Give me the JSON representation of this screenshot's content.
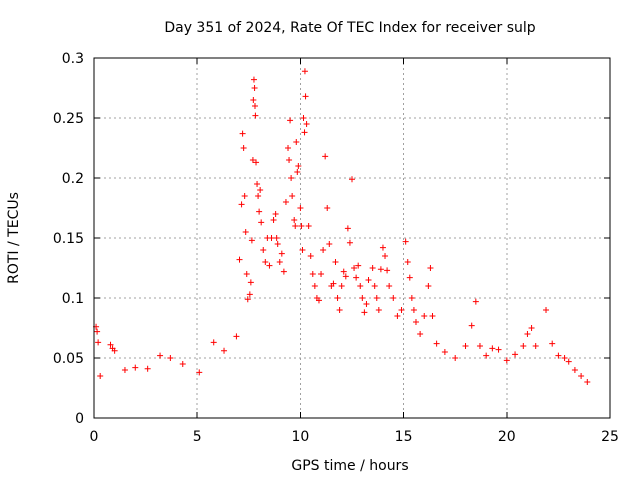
{
  "chart_data": {
    "type": "scatter",
    "title": "Day 351 of 2024, Rate Of TEC Index for receiver sulp",
    "xlabel": "GPS time / hours",
    "ylabel": "ROTI / TECUs",
    "xlim": [
      0,
      25
    ],
    "ylim": [
      0,
      0.3
    ],
    "x_ticks": [
      {
        "value": 0,
        "label": "0"
      },
      {
        "value": 5,
        "label": "5"
      },
      {
        "value": 10,
        "label": "10"
      },
      {
        "value": 15,
        "label": "15"
      },
      {
        "value": 20,
        "label": "20"
      },
      {
        "value": 25,
        "label": "25"
      }
    ],
    "y_ticks": [
      {
        "value": 0,
        "label": "0"
      },
      {
        "value": 0.05,
        "label": "0.05"
      },
      {
        "value": 0.1,
        "label": "0.1"
      },
      {
        "value": 0.15,
        "label": "0.15"
      },
      {
        "value": 0.2,
        "label": "0.2"
      },
      {
        "value": 0.25,
        "label": "0.25"
      },
      {
        "value": 0.3,
        "label": "0.3"
      }
    ],
    "grid": true,
    "marker": "plus",
    "color": "#ff0000",
    "series": [
      {
        "name": "ROTI",
        "points": [
          [
            0.1,
            0.076
          ],
          [
            0.15,
            0.072
          ],
          [
            0.2,
            0.063
          ],
          [
            0.3,
            0.035
          ],
          [
            0.8,
            0.061
          ],
          [
            0.9,
            0.058
          ],
          [
            1.0,
            0.056
          ],
          [
            1.5,
            0.04
          ],
          [
            2.0,
            0.042
          ],
          [
            2.6,
            0.041
          ],
          [
            3.2,
            0.052
          ],
          [
            3.7,
            0.05
          ],
          [
            4.3,
            0.045
          ],
          [
            5.1,
            0.038
          ],
          [
            5.8,
            0.063
          ],
          [
            6.3,
            0.056
          ],
          [
            6.9,
            0.068
          ],
          [
            7.05,
            0.132
          ],
          [
            7.15,
            0.178
          ],
          [
            7.2,
            0.237
          ],
          [
            7.25,
            0.225
          ],
          [
            7.3,
            0.185
          ],
          [
            7.35,
            0.155
          ],
          [
            7.4,
            0.12
          ],
          [
            7.45,
            0.099
          ],
          [
            7.55,
            0.103
          ],
          [
            7.6,
            0.113
          ],
          [
            7.65,
            0.148
          ],
          [
            7.7,
            0.215
          ],
          [
            7.72,
            0.265
          ],
          [
            7.75,
            0.282
          ],
          [
            7.78,
            0.275
          ],
          [
            7.8,
            0.26
          ],
          [
            7.82,
            0.252
          ],
          [
            7.85,
            0.213
          ],
          [
            7.9,
            0.195
          ],
          [
            7.95,
            0.185
          ],
          [
            8.0,
            0.172
          ],
          [
            8.05,
            0.19
          ],
          [
            8.1,
            0.163
          ],
          [
            8.2,
            0.14
          ],
          [
            8.3,
            0.13
          ],
          [
            8.4,
            0.15
          ],
          [
            8.5,
            0.127
          ],
          [
            8.6,
            0.15
          ],
          [
            8.7,
            0.165
          ],
          [
            8.8,
            0.17
          ],
          [
            8.85,
            0.15
          ],
          [
            8.9,
            0.145
          ],
          [
            9.0,
            0.13
          ],
          [
            9.1,
            0.137
          ],
          [
            9.2,
            0.122
          ],
          [
            9.3,
            0.18
          ],
          [
            9.4,
            0.225
          ],
          [
            9.45,
            0.215
          ],
          [
            9.5,
            0.248
          ],
          [
            9.55,
            0.2
          ],
          [
            9.6,
            0.185
          ],
          [
            9.7,
            0.165
          ],
          [
            9.75,
            0.16
          ],
          [
            9.8,
            0.23
          ],
          [
            9.85,
            0.205
          ],
          [
            9.9,
            0.21
          ],
          [
            10.0,
            0.175
          ],
          [
            10.05,
            0.16
          ],
          [
            10.1,
            0.14
          ],
          [
            10.15,
            0.25
          ],
          [
            10.2,
            0.238
          ],
          [
            10.22,
            0.289
          ],
          [
            10.25,
            0.268
          ],
          [
            10.3,
            0.245
          ],
          [
            10.4,
            0.16
          ],
          [
            10.5,
            0.135
          ],
          [
            10.6,
            0.12
          ],
          [
            10.7,
            0.11
          ],
          [
            10.8,
            0.1
          ],
          [
            10.9,
            0.098
          ],
          [
            11.0,
            0.12
          ],
          [
            11.1,
            0.14
          ],
          [
            11.2,
            0.218
          ],
          [
            11.3,
            0.175
          ],
          [
            11.4,
            0.145
          ],
          [
            11.5,
            0.11
          ],
          [
            11.6,
            0.112
          ],
          [
            11.7,
            0.13
          ],
          [
            11.8,
            0.1
          ],
          [
            11.9,
            0.09
          ],
          [
            12.0,
            0.11
          ],
          [
            12.1,
            0.122
          ],
          [
            12.2,
            0.118
          ],
          [
            12.3,
            0.158
          ],
          [
            12.4,
            0.146
          ],
          [
            12.5,
            0.199
          ],
          [
            12.6,
            0.125
          ],
          [
            12.7,
            0.117
          ],
          [
            12.8,
            0.127
          ],
          [
            12.9,
            0.11
          ],
          [
            13.0,
            0.1
          ],
          [
            13.1,
            0.088
          ],
          [
            13.2,
            0.095
          ],
          [
            13.3,
            0.115
          ],
          [
            13.5,
            0.125
          ],
          [
            13.6,
            0.11
          ],
          [
            13.7,
            0.1
          ],
          [
            13.8,
            0.09
          ],
          [
            13.9,
            0.124
          ],
          [
            14.0,
            0.142
          ],
          [
            14.1,
            0.135
          ],
          [
            14.2,
            0.123
          ],
          [
            14.3,
            0.11
          ],
          [
            14.5,
            0.1
          ],
          [
            14.7,
            0.085
          ],
          [
            14.9,
            0.09
          ],
          [
            15.1,
            0.147
          ],
          [
            15.2,
            0.13
          ],
          [
            15.3,
            0.117
          ],
          [
            15.4,
            0.1
          ],
          [
            15.5,
            0.09
          ],
          [
            15.6,
            0.08
          ],
          [
            15.8,
            0.07
          ],
          [
            16.0,
            0.085
          ],
          [
            16.2,
            0.11
          ],
          [
            16.3,
            0.125
          ],
          [
            16.4,
            0.085
          ],
          [
            16.6,
            0.062
          ],
          [
            17.0,
            0.055
          ],
          [
            17.5,
            0.05
          ],
          [
            18.0,
            0.06
          ],
          [
            18.3,
            0.077
          ],
          [
            18.5,
            0.097
          ],
          [
            18.7,
            0.06
          ],
          [
            19.0,
            0.052
          ],
          [
            19.3,
            0.058
          ],
          [
            19.6,
            0.057
          ],
          [
            20.0,
            0.048
          ],
          [
            20.4,
            0.053
          ],
          [
            20.8,
            0.06
          ],
          [
            21.0,
            0.07
          ],
          [
            21.2,
            0.075
          ],
          [
            21.4,
            0.06
          ],
          [
            21.9,
            0.09
          ],
          [
            22.2,
            0.062
          ],
          [
            22.5,
            0.052
          ],
          [
            22.8,
            0.05
          ],
          [
            23.0,
            0.047
          ],
          [
            23.3,
            0.04
          ],
          [
            23.6,
            0.035
          ],
          [
            23.9,
            0.03
          ]
        ]
      }
    ]
  }
}
